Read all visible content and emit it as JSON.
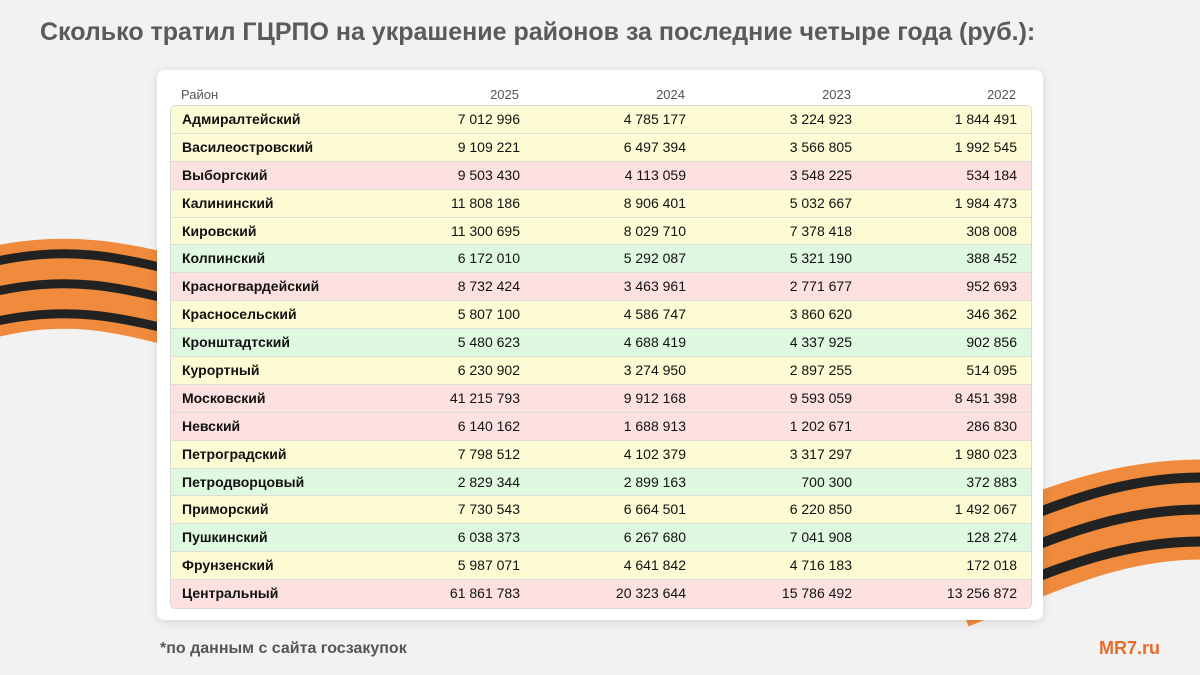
{
  "title": "Сколько тратил ГЦРПО на украшение районов за последние четыре года (руб.):",
  "table": {
    "header": [
      "Район",
      "2025",
      "2024",
      "2023",
      "2022"
    ],
    "rows": [
      {
        "cells": [
          "Адмиралтейский",
          "7 012 996",
          "4 785 177",
          "3 224 923",
          "1 844 491"
        ],
        "color": "#fdfbd3"
      },
      {
        "cells": [
          "Василеостровский",
          "9 109 221",
          "6 497 394",
          "3 566 805",
          "1 992 545"
        ],
        "color": "#fdfbd3"
      },
      {
        "cells": [
          "Выборгский",
          "9 503 430",
          "4 113 059",
          "3 548 225",
          "534 184"
        ],
        "color": "#fde0e0"
      },
      {
        "cells": [
          "Калининский",
          "11 808 186",
          "8 906 401",
          "5 032 667",
          "1 984 473"
        ],
        "color": "#fdfbd3"
      },
      {
        "cells": [
          "Кировский",
          "11 300 695",
          "8 029 710",
          "7 378 418",
          "308 008"
        ],
        "color": "#fdfbd3"
      },
      {
        "cells": [
          "Колпинский",
          "6 172 010",
          "5 292 087",
          "5 321 190",
          "388 452"
        ],
        "color": "#dff8e0"
      },
      {
        "cells": [
          "Красногвардейский",
          "8 732 424",
          "3 463 961",
          "2 771 677",
          "952 693"
        ],
        "color": "#fde0e0"
      },
      {
        "cells": [
          "Красносельский",
          "5 807 100",
          "4 586 747",
          "3 860 620",
          "346 362"
        ],
        "color": "#fdfbd3"
      },
      {
        "cells": [
          "Кронштадтский",
          "5 480 623",
          "4 688 419",
          "4 337 925",
          "902 856"
        ],
        "color": "#dff8e0"
      },
      {
        "cells": [
          "Курортный",
          "6 230 902",
          "3 274 950",
          "2 897 255",
          "514 095"
        ],
        "color": "#fdfbd3"
      },
      {
        "cells": [
          "Московский",
          "41 215 793",
          "9 912 168",
          "9 593 059",
          "8 451 398"
        ],
        "color": "#fde0e0"
      },
      {
        "cells": [
          "Невский",
          "6 140 162",
          "1 688 913",
          "1 202 671",
          "286 830"
        ],
        "color": "#fde0e0"
      },
      {
        "cells": [
          "Петроградский",
          "7 798 512",
          "4 102 379",
          "3 317 297",
          "1 980 023"
        ],
        "color": "#fdfbd3"
      },
      {
        "cells": [
          "Петродворцовый",
          "2 829 344",
          "2 899 163",
          "700 300",
          "372 883"
        ],
        "color": "#dff8e0"
      },
      {
        "cells": [
          "Приморский",
          "7 730 543",
          "6 664 501",
          "6 220 850",
          "1 492 067"
        ],
        "color": "#fdfbd3"
      },
      {
        "cells": [
          "Пушкинский",
          "6 038 373",
          "6 267 680",
          "7 041 908",
          "128 274"
        ],
        "color": "#dff8e0"
      },
      {
        "cells": [
          "Фрунзенский",
          "5 987 071",
          "4 641 842",
          "4 716 183",
          "172 018"
        ],
        "color": "#fdfbd3"
      },
      {
        "cells": [
          "Центральный",
          "61 861 783",
          "20 323 644",
          "15 786 492",
          "13 256 872"
        ],
        "color": "#fde0e0"
      }
    ]
  },
  "footnote": "*по данным с сайта госзакупок",
  "logo": "MR7.ru"
}
